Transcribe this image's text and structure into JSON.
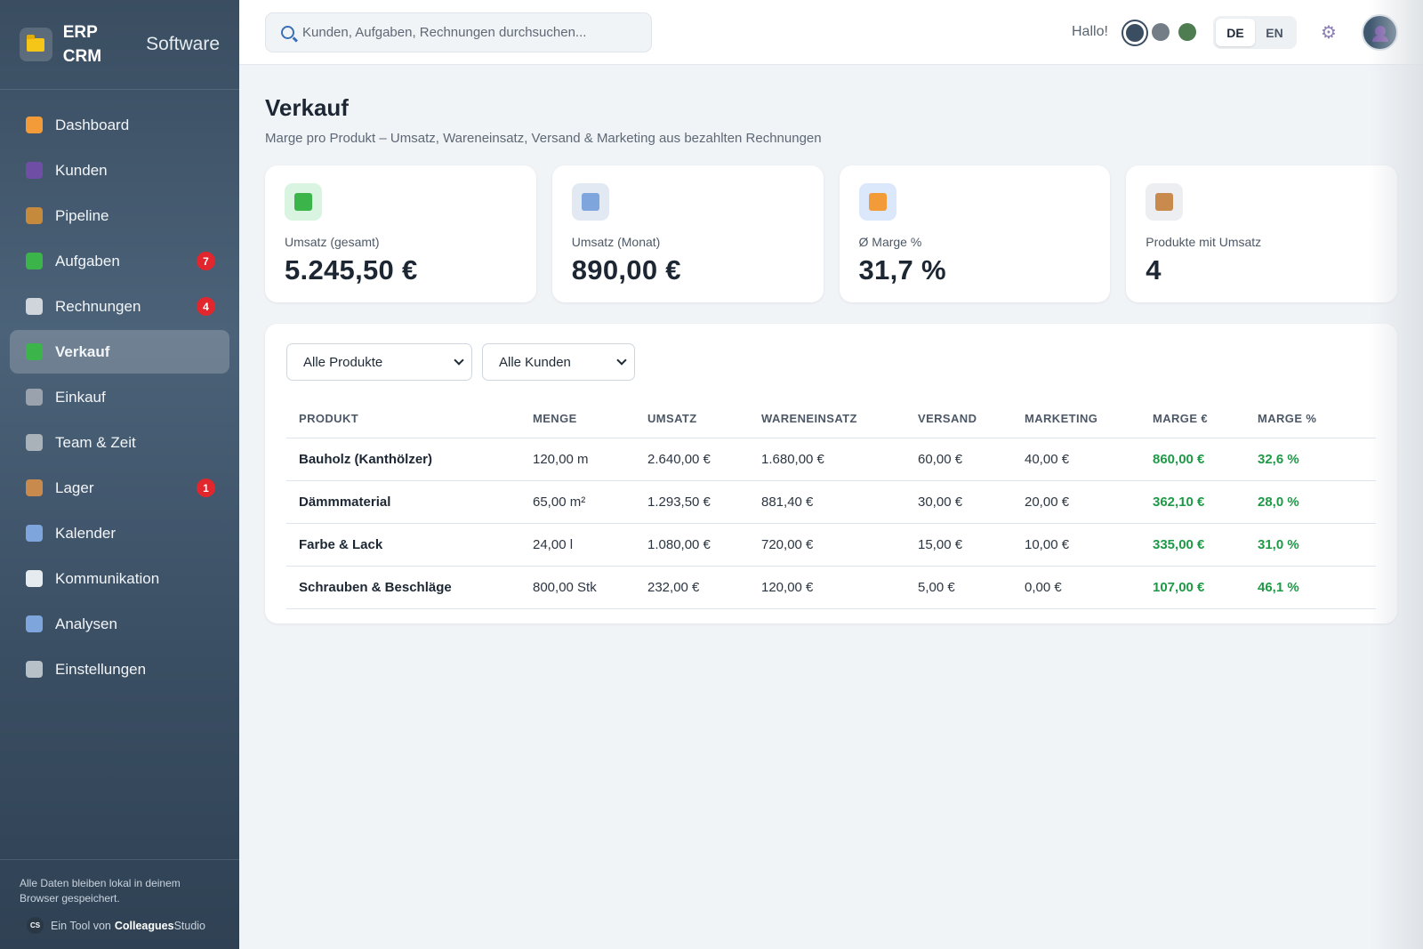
{
  "brand": {
    "name": "ERP CRM",
    "sub": "Software"
  },
  "sidebar": {
    "items": [
      {
        "label": "Dashboard",
        "icon": "chart-bars-icon",
        "badge": null,
        "active": false,
        "color": "#f29b38"
      },
      {
        "label": "Kunden",
        "icon": "users-icon",
        "badge": null,
        "active": false,
        "color": "#6f4fa6"
      },
      {
        "label": "Pipeline",
        "icon": "compass-icon",
        "badge": null,
        "active": false,
        "color": "#c58a3b"
      },
      {
        "label": "Aufgaben",
        "icon": "checkmark-icon",
        "badge": "7",
        "active": false,
        "color": "#3bb54a"
      },
      {
        "label": "Rechnungen",
        "icon": "receipt-icon",
        "badge": "4",
        "active": false,
        "color": "#cfd5db"
      },
      {
        "label": "Verkauf",
        "icon": "trend-up-icon",
        "badge": null,
        "active": true,
        "color": "#3bb54a"
      },
      {
        "label": "Einkauf",
        "icon": "keyboard-icon",
        "badge": null,
        "active": false,
        "color": "#9aa3ad"
      },
      {
        "label": "Team & Zeit",
        "icon": "stopwatch-icon",
        "badge": null,
        "active": false,
        "color": "#a9b1b9"
      },
      {
        "label": "Lager",
        "icon": "package-icon",
        "badge": "1",
        "active": false,
        "color": "#c98a4e"
      },
      {
        "label": "Kalender",
        "icon": "calendar-icon",
        "badge": null,
        "active": false,
        "color": "#7ea6dc"
      },
      {
        "label": "Kommunikation",
        "icon": "speech-bubble-icon",
        "badge": null,
        "active": false,
        "color": "#e6ebf0"
      },
      {
        "label": "Analysen",
        "icon": "line-chart-icon",
        "badge": null,
        "active": false,
        "color": "#7ea6dc"
      },
      {
        "label": "Einstellungen",
        "icon": "gear-icon",
        "badge": null,
        "active": false,
        "color": "#b8c0c8"
      }
    ],
    "footer_note": "Alle Daten bleiben lokal in deinem Browser gespeichert.",
    "credit_prefix": "Ein Tool von",
    "credit_brand_bold": "Colleagues",
    "credit_brand_rest": "Studio",
    "credit_badge": "CS"
  },
  "topbar": {
    "search_placeholder": "Kunden, Aufgaben, Rechnungen durchsuchen...",
    "greeting": "Hallo!",
    "theme_colors": [
      "#3a4d61",
      "#747c85",
      "#4f7d52"
    ],
    "lang": [
      "DE",
      "EN"
    ],
    "lang_active": "DE"
  },
  "page": {
    "title": "Verkauf",
    "subtitle": "Marge pro Produkt – Umsatz, Wareneinsatz, Versand & Marketing aus bezahlten Rechnungen"
  },
  "kpis": [
    {
      "label": "Umsatz (gesamt)",
      "value": "5.245,50 €",
      "icon": "trend-up-icon",
      "icon_bg": "#d9f4e0",
      "icon_color": "#3bb54a"
    },
    {
      "label": "Umsatz (Monat)",
      "value": "890,00 €",
      "icon": "calendar-icon",
      "icon_bg": "#e3e9f3",
      "icon_color": "#7ea6dc"
    },
    {
      "label": "Ø Marge %",
      "value": "31,7 %",
      "icon": "chart-bars-icon",
      "icon_bg": "#dbe7fb",
      "icon_color": "#f29b38"
    },
    {
      "label": "Produkte mit Umsatz",
      "value": "4",
      "icon": "package-icon",
      "icon_bg": "#eceef1",
      "icon_color": "#c98a4e"
    }
  ],
  "filters": {
    "product": "Alle Produkte",
    "customer": "Alle Kunden"
  },
  "table": {
    "headers": [
      "PRODUKT",
      "MENGE",
      "UMSATZ",
      "WARENEINSATZ",
      "VERSAND",
      "MARKETING",
      "MARGE €",
      "MARGE %"
    ],
    "rows": [
      [
        "Bauholz (Kanthölzer)",
        "120,00 m",
        "2.640,00 €",
        "1.680,00 €",
        "60,00 €",
        "40,00 €",
        "860,00 €",
        "32,6 %"
      ],
      [
        "Dämmmaterial",
        "65,00 m²",
        "1.293,50 €",
        "881,40 €",
        "30,00 €",
        "20,00 €",
        "362,10 €",
        "28,0 %"
      ],
      [
        "Farbe & Lack",
        "24,00 l",
        "1.080,00 €",
        "720,00 €",
        "15,00 €",
        "10,00 €",
        "335,00 €",
        "31,0 %"
      ],
      [
        "Schrauben & Beschläge",
        "800,00 Stk",
        "232,00 €",
        "120,00 €",
        "5,00 €",
        "0,00 €",
        "107,00 €",
        "46,1 %"
      ]
    ]
  }
}
